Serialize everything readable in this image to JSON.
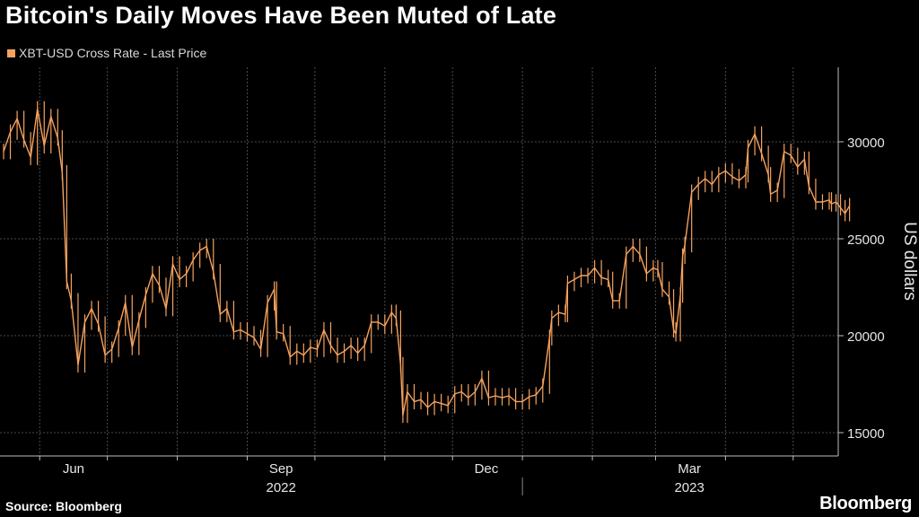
{
  "header": {
    "title": "Bitcoin's Daily Moves Have Been Muted of Late",
    "legend_label": "XBT-USD Cross Rate - Last Price"
  },
  "footer": {
    "source": "Source: Bloomberg",
    "brand": "Bloomberg"
  },
  "colors": {
    "background": "#000000",
    "series": "#f6a25e",
    "grid": "#4a4a4a"
  },
  "chart_data": {
    "type": "line",
    "title": "Bitcoin's Daily Moves Have Been Muted of Late",
    "xlabel": "",
    "ylabel": "US dollars",
    "y_axis_side": "right",
    "ylim": [
      14000,
      33000
    ],
    "y_ticks": [
      15000,
      20000,
      25000,
      30000
    ],
    "x_range": [
      "2022-05-16",
      "2023-05-17"
    ],
    "x_ticks": [
      {
        "date": "2022-06-01",
        "label": "Jun"
      },
      {
        "date": "2022-09-01",
        "label": "Sep"
      },
      {
        "date": "2022-12-01",
        "label": "Dec"
      },
      {
        "date": "2023-03-01",
        "label": "Mar"
      }
    ],
    "x_year_labels": [
      {
        "label": "2022",
        "date": "2022-09-01"
      },
      {
        "label": "2023",
        "date": "2023-03-01"
      }
    ],
    "grid": true,
    "series": [
      {
        "name": "XBT-USD Cross Rate - Last Price",
        "points": [
          [
            "2022-05-16",
            29500
          ],
          [
            "2022-05-19",
            30500
          ],
          [
            "2022-05-22",
            31200
          ],
          [
            "2022-05-25",
            30100
          ],
          [
            "2022-05-28",
            29200
          ],
          [
            "2022-05-31",
            31700
          ],
          [
            "2022-06-03",
            29800
          ],
          [
            "2022-06-06",
            31300
          ],
          [
            "2022-06-09",
            30200
          ],
          [
            "2022-06-11",
            28400
          ],
          [
            "2022-06-13",
            22800
          ],
          [
            "2022-06-15",
            21800
          ],
          [
            "2022-06-18",
            18500
          ],
          [
            "2022-06-21",
            20700
          ],
          [
            "2022-06-24",
            21400
          ],
          [
            "2022-06-27",
            20600
          ],
          [
            "2022-06-30",
            19000
          ],
          [
            "2022-07-03",
            19300
          ],
          [
            "2022-07-06",
            20400
          ],
          [
            "2022-07-09",
            21700
          ],
          [
            "2022-07-12",
            19400
          ],
          [
            "2022-07-15",
            20800
          ],
          [
            "2022-07-18",
            22100
          ],
          [
            "2022-07-21",
            23200
          ],
          [
            "2022-07-24",
            22600
          ],
          [
            "2022-07-27",
            21400
          ],
          [
            "2022-07-30",
            23700
          ],
          [
            "2022-08-02",
            22900
          ],
          [
            "2022-08-05",
            23200
          ],
          [
            "2022-08-08",
            23900
          ],
          [
            "2022-08-11",
            24400
          ],
          [
            "2022-08-14",
            24600
          ],
          [
            "2022-08-17",
            23300
          ],
          [
            "2022-08-20",
            21100
          ],
          [
            "2022-08-23",
            21400
          ],
          [
            "2022-08-26",
            20200
          ],
          [
            "2022-08-29",
            20300
          ],
          [
            "2022-09-01",
            20100
          ],
          [
            "2022-09-04",
            19900
          ],
          [
            "2022-09-07",
            19300
          ],
          [
            "2022-09-10",
            21700
          ],
          [
            "2022-09-13",
            22400
          ],
          [
            "2022-09-14",
            20200
          ],
          [
            "2022-09-17",
            20100
          ],
          [
            "2022-09-20",
            18900
          ],
          [
            "2022-09-23",
            19200
          ],
          [
            "2022-09-26",
            19000
          ],
          [
            "2022-09-29",
            19400
          ],
          [
            "2022-10-02",
            19300
          ],
          [
            "2022-10-05",
            20300
          ],
          [
            "2022-10-08",
            19500
          ],
          [
            "2022-10-11",
            19000
          ],
          [
            "2022-10-14",
            19200
          ],
          [
            "2022-10-17",
            19500
          ],
          [
            "2022-10-20",
            19100
          ],
          [
            "2022-10-23",
            19500
          ],
          [
            "2022-10-26",
            20700
          ],
          [
            "2022-10-29",
            20700
          ],
          [
            "2022-11-01",
            20500
          ],
          [
            "2022-11-04",
            21200
          ],
          [
            "2022-11-06",
            20900
          ],
          [
            "2022-11-08",
            18500
          ],
          [
            "2022-11-09",
            15900
          ],
          [
            "2022-11-11",
            17100
          ],
          [
            "2022-11-14",
            16600
          ],
          [
            "2022-11-17",
            16700
          ],
          [
            "2022-11-20",
            16300
          ],
          [
            "2022-11-23",
            16600
          ],
          [
            "2022-11-26",
            16500
          ],
          [
            "2022-11-29",
            16400
          ],
          [
            "2022-12-02",
            17000
          ],
          [
            "2022-12-05",
            17100
          ],
          [
            "2022-12-08",
            16800
          ],
          [
            "2022-12-11",
            17100
          ],
          [
            "2022-12-14",
            17800
          ],
          [
            "2022-12-17",
            16800
          ],
          [
            "2022-12-20",
            16900
          ],
          [
            "2022-12-23",
            16800
          ],
          [
            "2022-12-26",
            16900
          ],
          [
            "2022-12-29",
            16600
          ],
          [
            "2023-01-01",
            16600
          ],
          [
            "2023-01-04",
            16850
          ],
          [
            "2023-01-07",
            16950
          ],
          [
            "2023-01-10",
            17400
          ],
          [
            "2023-01-13",
            19900
          ],
          [
            "2023-01-14",
            20900
          ],
          [
            "2023-01-17",
            21200
          ],
          [
            "2023-01-20",
            21100
          ],
          [
            "2023-01-21",
            22700
          ],
          [
            "2023-01-24",
            22900
          ],
          [
            "2023-01-27",
            23100
          ],
          [
            "2023-01-30",
            23100
          ],
          [
            "2023-02-02",
            23500
          ],
          [
            "2023-02-05",
            23000
          ],
          [
            "2023-02-08",
            22900
          ],
          [
            "2023-02-10",
            21800
          ],
          [
            "2023-02-13",
            21800
          ],
          [
            "2023-02-16",
            24200
          ],
          [
            "2023-02-19",
            24600
          ],
          [
            "2023-02-22",
            24200
          ],
          [
            "2023-02-25",
            23200
          ],
          [
            "2023-02-28",
            23500
          ],
          [
            "2023-03-02",
            23400
          ],
          [
            "2023-03-04",
            22400
          ],
          [
            "2023-03-07",
            22000
          ],
          [
            "2023-03-09",
            20300
          ],
          [
            "2023-03-10",
            20100
          ],
          [
            "2023-03-12",
            22100
          ],
          [
            "2023-03-13",
            24100
          ],
          [
            "2023-03-14",
            24700
          ],
          [
            "2023-03-17",
            27400
          ],
          [
            "2023-03-20",
            27800
          ],
          [
            "2023-03-23",
            28100
          ],
          [
            "2023-03-26",
            27800
          ],
          [
            "2023-03-29",
            28300
          ],
          [
            "2023-04-01",
            28500
          ],
          [
            "2023-04-04",
            28200
          ],
          [
            "2023-04-07",
            28000
          ],
          [
            "2023-04-10",
            28300
          ],
          [
            "2023-04-11",
            29700
          ],
          [
            "2023-04-14",
            30400
          ],
          [
            "2023-04-17",
            29400
          ],
          [
            "2023-04-20",
            28300
          ],
          [
            "2023-04-21",
            27300
          ],
          [
            "2023-04-24",
            27500
          ],
          [
            "2023-04-27",
            29500
          ],
          [
            "2023-04-30",
            29300
          ],
          [
            "2023-05-03",
            28700
          ],
          [
            "2023-05-06",
            29100
          ],
          [
            "2023-05-08",
            27700
          ],
          [
            "2023-05-11",
            26900
          ],
          [
            "2023-05-14",
            26900
          ],
          [
            "2023-05-17",
            27000
          ],
          [
            "2023-05-18",
            26800
          ],
          [
            "2023-05-20",
            26900
          ],
          [
            "2023-05-22",
            26600
          ],
          [
            "2023-05-24",
            26300
          ],
          [
            "2023-05-26",
            26700
          ]
        ]
      }
    ]
  }
}
